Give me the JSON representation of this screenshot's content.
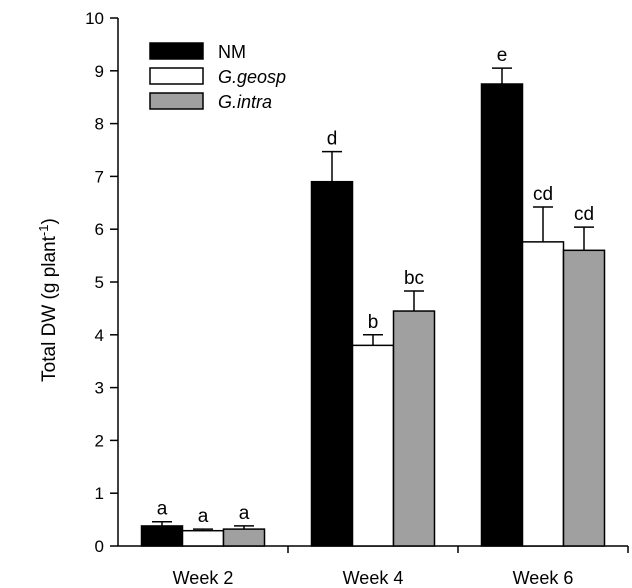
{
  "chart_data": {
    "type": "bar",
    "title": "",
    "xlabel": "",
    "ylabel": "Total  DW (g plant",
    "ylabel_superscript": "-1",
    "ylabel_suffix": ")",
    "ylim": [
      0,
      10
    ],
    "yticks": [
      "0",
      "1",
      "2",
      "3",
      "4",
      "5",
      "6",
      "7",
      "8",
      "9",
      "10"
    ],
    "categories": [
      "Week 2",
      "Week 4",
      "Week 6"
    ],
    "legend_position": "top-left",
    "series": [
      {
        "name": "NM",
        "italic": false,
        "color": "#000000",
        "values": [
          0.38,
          6.9,
          8.75
        ],
        "errors": [
          0.08,
          0.57,
          0.3
        ],
        "letters": [
          "a",
          "d",
          "e"
        ]
      },
      {
        "name": "G.geosp",
        "italic": true,
        "color": "#ffffff",
        "values": [
          0.29,
          3.8,
          5.76
        ],
        "errors": [
          0.03,
          0.2,
          0.66
        ],
        "letters": [
          "a",
          "b",
          "cd"
        ]
      },
      {
        "name": "G.intra",
        "italic": true,
        "color": "#a0a0a0",
        "values": [
          0.32,
          4.45,
          5.6
        ],
        "errors": [
          0.06,
          0.38,
          0.44
        ],
        "letters": [
          "a",
          "bc",
          "cd"
        ]
      }
    ]
  }
}
